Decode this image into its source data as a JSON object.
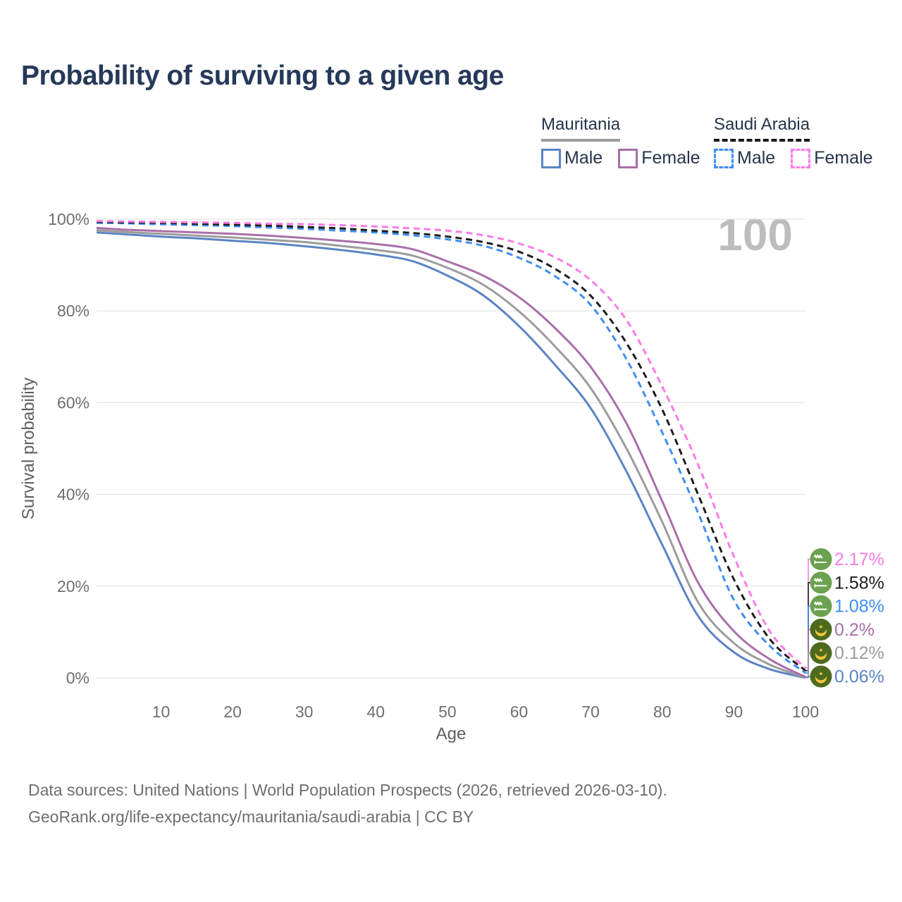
{
  "title": "Probability of surviving to a given age",
  "watermark": "100",
  "legend": {
    "groups": [
      {
        "name": "Mauritania",
        "underline_color": "#9b9b9b",
        "underline_style": "solid",
        "items": [
          {
            "label": "Male",
            "color": "#5b84c4",
            "dashed": false
          },
          {
            "label": "Female",
            "color": "#a96fa9",
            "dashed": false
          }
        ]
      },
      {
        "name": "Saudi Arabia",
        "underline_color": "#161616",
        "underline_style": "dashed",
        "items": [
          {
            "label": "Male",
            "color": "#3f8ef5",
            "dashed": true
          },
          {
            "label": "Female",
            "color": "#fb7be6",
            "dashed": true
          }
        ]
      }
    ]
  },
  "chart_data": {
    "type": "line",
    "title": "Probability of surviving to a given age",
    "xlabel": "Age",
    "ylabel": "Survival probability",
    "xlim": [
      1,
      100
    ],
    "ylim": [
      0,
      100
    ],
    "grid": true,
    "legend_position": "top-right",
    "x_ticks": [
      10,
      20,
      30,
      40,
      50,
      60,
      70,
      80,
      90,
      100
    ],
    "y_ticks": [
      {
        "value": 0,
        "label": "0%"
      },
      {
        "value": 20,
        "label": "20%"
      },
      {
        "value": 40,
        "label": "40%"
      },
      {
        "value": 60,
        "label": "60%"
      },
      {
        "value": 80,
        "label": "80%"
      },
      {
        "value": 100,
        "label": "100%"
      }
    ],
    "ages": [
      1,
      5,
      10,
      15,
      20,
      25,
      30,
      35,
      40,
      45,
      50,
      55,
      60,
      65,
      70,
      75,
      80,
      85,
      90,
      95,
      100
    ],
    "series": [
      {
        "name": "Saudi Arabia Female",
        "color": "#fb7be6",
        "dashed": true,
        "flag": "saudi-arabia",
        "end_label": "2.17%",
        "values": [
          99.6,
          99.5,
          99.4,
          99.3,
          99.2,
          99.0,
          98.9,
          98.7,
          98.4,
          98.0,
          97.5,
          96.5,
          94.7,
          91.7,
          86.7,
          78.0,
          63.5,
          46.5,
          26.5,
          10.2,
          2.17
        ]
      },
      {
        "name": "Saudi Arabia",
        "color": "#1d1d1d",
        "dashed": true,
        "flag": "saudi-arabia",
        "end_label": "1.58%",
        "values": [
          99.4,
          99.3,
          99.2,
          99.0,
          98.8,
          98.6,
          98.3,
          98.0,
          97.5,
          97.0,
          96.2,
          95.0,
          92.9,
          89.2,
          83.3,
          73.0,
          58.5,
          40.0,
          21.5,
          8.5,
          1.58
        ]
      },
      {
        "name": "Saudi Arabia Male",
        "color": "#3f8ef5",
        "dashed": true,
        "flag": "saudi-arabia",
        "end_label": "1.08%",
        "values": [
          99.2,
          99.1,
          98.9,
          98.7,
          98.5,
          98.2,
          97.9,
          97.5,
          97.1,
          96.5,
          95.6,
          94.2,
          91.6,
          87.6,
          81.3,
          69.5,
          53.5,
          36.0,
          17.0,
          7.0,
          1.08
        ]
      },
      {
        "name": "Mauritania Female",
        "color": "#a96fa9",
        "dashed": false,
        "flag": "mauritania",
        "end_label": "0.2%",
        "values": [
          98.1,
          97.7,
          97.4,
          97.1,
          96.8,
          96.4,
          95.9,
          95.3,
          94.6,
          93.5,
          90.8,
          87.7,
          83.0,
          76.3,
          67.8,
          55.5,
          38.5,
          20.8,
          10.2,
          4.1,
          0.2
        ]
      },
      {
        "name": "Mauritania",
        "color": "#9c9c9c",
        "dashed": false,
        "flag": "mauritania",
        "end_label": "0.12%",
        "values": [
          97.6,
          97.2,
          96.8,
          96.4,
          96.0,
          95.5,
          95.0,
          94.2,
          93.3,
          92.1,
          89.4,
          85.7,
          79.9,
          72.3,
          63.2,
          50.0,
          34.0,
          16.5,
          7.6,
          2.9,
          0.12
        ]
      },
      {
        "name": "Mauritania Male",
        "color": "#5b84c4",
        "dashed": false,
        "flag": "mauritania",
        "end_label": "0.06%",
        "values": [
          97.1,
          96.7,
          96.2,
          95.8,
          95.3,
          94.8,
          94.1,
          93.3,
          92.3,
          90.9,
          87.7,
          83.4,
          76.7,
          68.3,
          58.8,
          45.0,
          29.0,
          13.5,
          5.6,
          1.9,
          0.06
        ]
      }
    ]
  },
  "footer": {
    "line1": "Data sources: United Nations | World Population Prospects (2026, retrieved 2026-03-10).",
    "line2": "GeoRank.org/life-expectancy/mauritania/saudi-arabia | CC BY"
  }
}
